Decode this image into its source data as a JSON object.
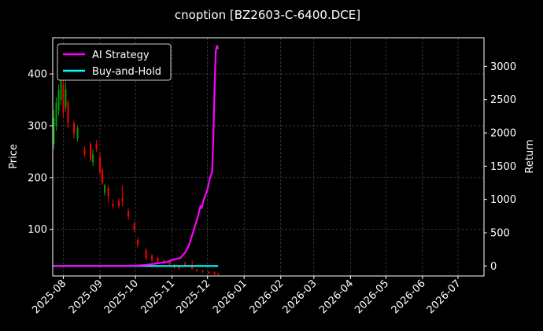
{
  "chart_data": {
    "type": "line",
    "title": "cnoption [BZ2603-C-6400.DCE]",
    "left_axis": {
      "label": "Price",
      "range": [
        10,
        470
      ],
      "ticks": [
        100,
        200,
        300,
        400
      ]
    },
    "right_axis": {
      "label": "Return",
      "range": [
        -150,
        3430
      ],
      "ticks": [
        0,
        500,
        1000,
        1500,
        2000,
        2500,
        3000
      ]
    },
    "x_axis": {
      "range": [
        "2025-07-23",
        "2026-07-23"
      ],
      "tick_labels": [
        "2025-08",
        "2025-09",
        "2025-10",
        "2025-11",
        "2025-12",
        "2026-01",
        "2026-02",
        "2026-03",
        "2026-04",
        "2026-05",
        "2026-06",
        "2026-07"
      ],
      "tick_dates": [
        "2025-08-01",
        "2025-09-01",
        "2025-10-01",
        "2025-11-01",
        "2025-12-01",
        "2026-01-01",
        "2026-02-01",
        "2026-03-01",
        "2026-04-01",
        "2026-05-01",
        "2026-06-01",
        "2026-07-01"
      ]
    },
    "grid": true,
    "legend_position": "top-left",
    "colors": {
      "background": "#000000",
      "ai_strategy": "#ff00ff",
      "buy_and_hold": "#00ffff",
      "candle_up": "#00a000",
      "candle_down": "#ff0000",
      "grid": "#555555",
      "text": "#ffffff"
    },
    "series": [
      {
        "name": "AI Strategy",
        "axis": "right",
        "points": [
          [
            "2025-07-23",
            0
          ],
          [
            "2025-08-15",
            0
          ],
          [
            "2025-09-15",
            0
          ],
          [
            "2025-10-01",
            5
          ],
          [
            "2025-10-10",
            15
          ],
          [
            "2025-10-20",
            40
          ],
          [
            "2025-10-28",
            60
          ],
          [
            "2025-11-01",
            90
          ],
          [
            "2025-11-08",
            120
          ],
          [
            "2025-11-12",
            200
          ],
          [
            "2025-11-15",
            300
          ],
          [
            "2025-11-19",
            520
          ],
          [
            "2025-11-23",
            750
          ],
          [
            "2025-11-25",
            900
          ],
          [
            "2025-11-26",
            870
          ],
          [
            "2025-11-28",
            1010
          ],
          [
            "2025-12-01",
            1150
          ],
          [
            "2025-12-02",
            1240
          ],
          [
            "2025-12-03",
            1320
          ],
          [
            "2025-12-05",
            1420
          ],
          [
            "2025-12-06",
            1980
          ],
          [
            "2025-12-07",
            2700
          ],
          [
            "2025-12-08",
            3230
          ],
          [
            "2025-12-09",
            3310
          ],
          [
            "2025-12-10",
            3260
          ]
        ]
      },
      {
        "name": "Buy-and-Hold",
        "axis": "right",
        "points": [
          [
            "2025-07-23",
            0
          ],
          [
            "2025-12-10",
            0
          ]
        ]
      }
    ],
    "candles": [
      {
        "date": "2025-07-24",
        "open": 265,
        "close": 315,
        "high": 330,
        "low": 255
      },
      {
        "date": "2025-07-26",
        "open": 300,
        "close": 345,
        "high": 355,
        "low": 290
      },
      {
        "date": "2025-07-28",
        "open": 330,
        "close": 370,
        "high": 380,
        "low": 320
      },
      {
        "date": "2025-07-30",
        "open": 350,
        "close": 395,
        "high": 405,
        "low": 340
      },
      {
        "date": "2025-08-01",
        "open": 380,
        "close": 325,
        "high": 390,
        "low": 315
      },
      {
        "date": "2025-08-03",
        "open": 335,
        "close": 370,
        "high": 385,
        "low": 328
      },
      {
        "date": "2025-08-05",
        "open": 345,
        "close": 305,
        "high": 350,
        "low": 295
      },
      {
        "date": "2025-08-10",
        "open": 305,
        "close": 285,
        "high": 310,
        "low": 275
      },
      {
        "date": "2025-08-13",
        "open": 275,
        "close": 295,
        "high": 300,
        "low": 270
      },
      {
        "date": "2025-08-19",
        "open": 255,
        "close": 245,
        "high": 260,
        "low": 240
      },
      {
        "date": "2025-08-24",
        "open": 265,
        "close": 235,
        "high": 270,
        "low": 230
      },
      {
        "date": "2025-08-26",
        "open": 230,
        "close": 245,
        "high": 255,
        "low": 222
      },
      {
        "date": "2025-08-29",
        "open": 265,
        "close": 255,
        "high": 272,
        "low": 250
      },
      {
        "date": "2025-09-01",
        "open": 240,
        "close": 210,
        "high": 250,
        "low": 205
      },
      {
        "date": "2025-09-03",
        "open": 215,
        "close": 190,
        "high": 218,
        "low": 185
      },
      {
        "date": "2025-09-05",
        "open": 170,
        "close": 185,
        "high": 188,
        "low": 165
      },
      {
        "date": "2025-09-08",
        "open": 180,
        "close": 165,
        "high": 185,
        "low": 150
      },
      {
        "date": "2025-09-12",
        "open": 150,
        "close": 145,
        "high": 158,
        "low": 140
      },
      {
        "date": "2025-09-17",
        "open": 155,
        "close": 145,
        "high": 160,
        "low": 140
      },
      {
        "date": "2025-09-20",
        "open": 160,
        "close": 155,
        "high": 185,
        "low": 145
      },
      {
        "date": "2025-09-25",
        "open": 135,
        "close": 125,
        "high": 140,
        "low": 118
      },
      {
        "date": "2025-09-30",
        "open": 110,
        "close": 100,
        "high": 115,
        "low": 95
      },
      {
        "date": "2025-10-03",
        "open": 80,
        "close": 70,
        "high": 85,
        "low": 65
      },
      {
        "date": "2025-10-10",
        "open": 60,
        "close": 45,
        "high": 65,
        "low": 40
      },
      {
        "date": "2025-10-15",
        "open": 50,
        "close": 40,
        "high": 52,
        "low": 38
      },
      {
        "date": "2025-10-20",
        "open": 45,
        "close": 38,
        "high": 48,
        "low": 35
      },
      {
        "date": "2025-10-25",
        "open": 40,
        "close": 35,
        "high": 42,
        "low": 32
      },
      {
        "date": "2025-10-30",
        "open": 38,
        "close": 32,
        "high": 40,
        "low": 30
      },
      {
        "date": "2025-11-03",
        "open": 30,
        "close": 26,
        "high": 34,
        "low": 24
      },
      {
        "date": "2025-11-07",
        "open": 28,
        "close": 24,
        "high": 30,
        "low": 22
      },
      {
        "date": "2025-11-12",
        "open": 35,
        "close": 30,
        "high": 38,
        "low": 28
      },
      {
        "date": "2025-11-18",
        "open": 30,
        "close": 24,
        "high": 40,
        "low": 22
      },
      {
        "date": "2025-11-22",
        "open": 22,
        "close": 20,
        "high": 24,
        "low": 18
      },
      {
        "date": "2025-11-27",
        "open": 20,
        "close": 18,
        "high": 22,
        "low": 16
      },
      {
        "date": "2025-12-02",
        "open": 18,
        "close": 16,
        "high": 20,
        "low": 14
      },
      {
        "date": "2025-12-07",
        "open": 17,
        "close": 14,
        "high": 19,
        "low": 12
      },
      {
        "date": "2025-12-10",
        "open": 15,
        "close": 13,
        "high": 16,
        "low": 11
      }
    ]
  }
}
